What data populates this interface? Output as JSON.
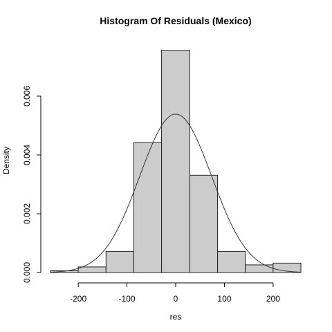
{
  "chart_data": {
    "type": "bar",
    "title": "Histogram Of Residuals (Mexico)",
    "xlabel": "res",
    "ylabel": "Density",
    "xlim": [
      -257,
      257
    ],
    "ylim": [
      0,
      0.0076
    ],
    "x_ticks": [
      -200,
      -100,
      0,
      100,
      200
    ],
    "x_tick_labels": [
      "-200",
      "-100",
      "0",
      "100",
      "200"
    ],
    "y_ticks": [
      0,
      0.002,
      0.004,
      0.006
    ],
    "y_tick_labels": [
      "0.000",
      "0.002",
      "0.004",
      "0.006"
    ],
    "bins": [
      {
        "x0": -257,
        "x1": -200,
        "value": 6e-05
      },
      {
        "x0": -200,
        "x1": -143,
        "value": 0.00019
      },
      {
        "x0": -143,
        "x1": -86,
        "value": 0.00072
      },
      {
        "x0": -86,
        "x1": -29,
        "value": 0.00442
      },
      {
        "x0": -29,
        "x1": 29,
        "value": 0.00756
      },
      {
        "x0": 29,
        "x1": 86,
        "value": 0.00331
      },
      {
        "x0": 86,
        "x1": 143,
        "value": 0.00072
      },
      {
        "x0": 143,
        "x1": 200,
        "value": 0.00026
      },
      {
        "x0": 200,
        "x1": 257,
        "value": 0.00032
      }
    ],
    "normal_curve": {
      "mean": 0,
      "sd": 74
    }
  }
}
